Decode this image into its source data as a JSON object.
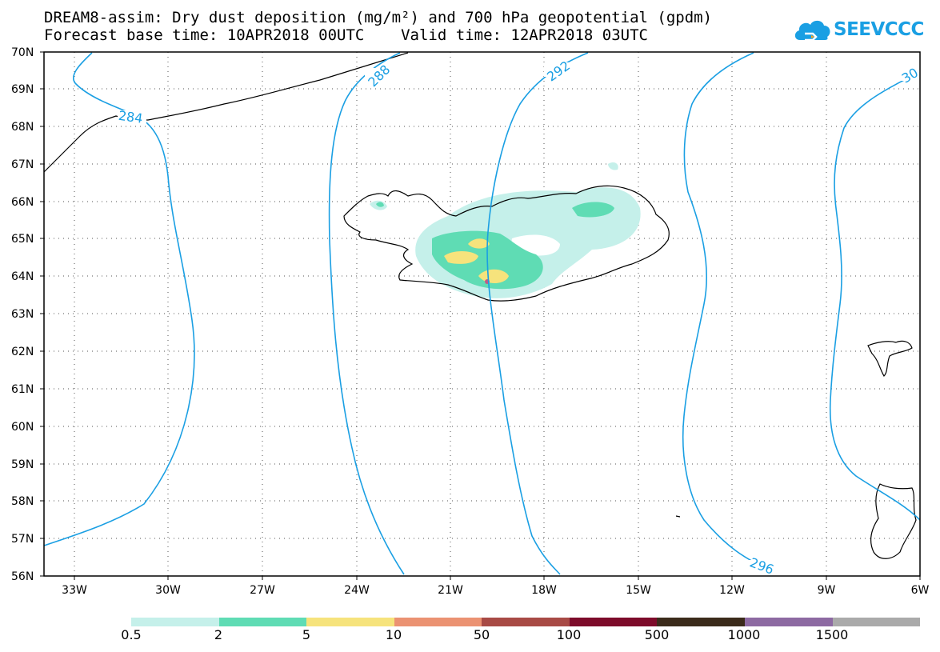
{
  "title": {
    "line1": "DREAM8-assim: Dry dust deposition (mg/m²) and 700 hPa geopotential (gpdm)",
    "line2": "Forecast base time: 10APR2018 00UTC    Valid time: 12APR2018 03UTC"
  },
  "logo": {
    "text": "SEEVCCC",
    "icon": "cloud-icon",
    "color": "#1a9fe3"
  },
  "map": {
    "lat_labels": [
      "70N",
      "69N",
      "68N",
      "67N",
      "66N",
      "65N",
      "64N",
      "63N",
      "62N",
      "61N",
      "60N",
      "59N",
      "58N",
      "57N",
      "56N"
    ],
    "lon_labels": [
      "33W",
      "30W",
      "27W",
      "24W",
      "21W",
      "18W",
      "15W",
      "12W",
      "9W",
      "6W"
    ],
    "contour_labels": [
      "284",
      "288",
      "292",
      "296",
      "30"
    ],
    "contour_color": "#1a9fe3"
  },
  "legend": {
    "colors": [
      "#c5f0ea",
      "#5fdcb4",
      "#f6e37c",
      "#eb9272",
      "#a84a45",
      "#7d0b2a",
      "#3b2b1b",
      "#8d6aa2",
      "#aaaaaa"
    ],
    "labels": [
      "0.5",
      "2",
      "5",
      "10",
      "50",
      "100",
      "500",
      "1000",
      "1500"
    ]
  }
}
